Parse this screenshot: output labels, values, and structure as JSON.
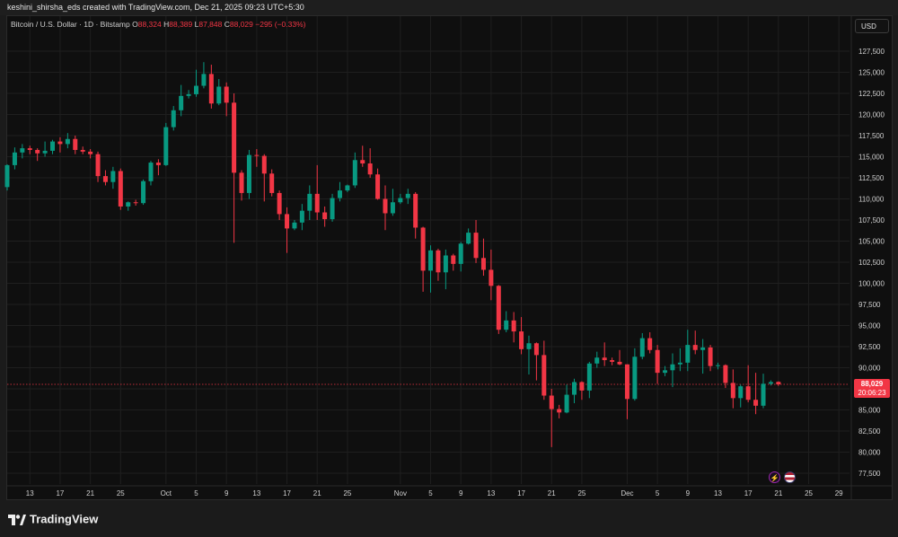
{
  "header": {
    "attribution": "keshini_shirsha_eds created with TradingView.com, Dec 21, 2025 09:23 UTC+5:30"
  },
  "legend": {
    "symbol": "Bitcoin / U.S. Dollar · 1D · Bitstamp",
    "open_label": "O",
    "open": "88,324",
    "high_label": "H",
    "high": "88,389",
    "low_label": "L",
    "low": "87,848",
    "close_label": "C",
    "close": "88,029",
    "change": "−295 (−0.33%)"
  },
  "currency_button": "USD",
  "last_price": {
    "value": "88,029",
    "countdown": "20:06:23"
  },
  "branding": {
    "logo_text": "TradingView"
  },
  "icons": [
    "lightning-icon",
    "us-flag-icon"
  ],
  "colors": {
    "up": "#089981",
    "down": "#f23645",
    "background": "#0f0f0f",
    "grid": "#1f1f1f"
  },
  "chart_data": {
    "type": "candlestick",
    "ylim": [
      76500,
      129000
    ],
    "y_ticks": [
      77500,
      80000,
      82500,
      85000,
      87500,
      90000,
      92500,
      95000,
      97500,
      100000,
      102500,
      105000,
      107500,
      110000,
      112500,
      115000,
      117500,
      120000,
      122500,
      125000,
      127500
    ],
    "y_tick_labels": [
      "77,500",
      "80,000",
      "82,500",
      "85,000",
      "87,500",
      "90,000",
      "92,500",
      "95,000",
      "97,500",
      "100,000",
      "102,500",
      "105,000",
      "107,500",
      "110,000",
      "112,500",
      "115,000",
      "117,500",
      "120,000",
      "122,500",
      "125,000",
      "127,500"
    ],
    "x_start": "2025-09-10",
    "x_end": "2025-12-30",
    "x_ticks": [
      {
        "date": "2025-09-13",
        "label": "13"
      },
      {
        "date": "2025-09-17",
        "label": "17"
      },
      {
        "date": "2025-09-21",
        "label": "21"
      },
      {
        "date": "2025-09-25",
        "label": "25"
      },
      {
        "date": "2025-10-01",
        "label": "Oct"
      },
      {
        "date": "2025-10-05",
        "label": "5"
      },
      {
        "date": "2025-10-09",
        "label": "9"
      },
      {
        "date": "2025-10-13",
        "label": "13"
      },
      {
        "date": "2025-10-17",
        "label": "17"
      },
      {
        "date": "2025-10-21",
        "label": "21"
      },
      {
        "date": "2025-10-25",
        "label": "25"
      },
      {
        "date": "2025-11-01",
        "label": "Nov"
      },
      {
        "date": "2025-11-05",
        "label": "5"
      },
      {
        "date": "2025-11-09",
        "label": "9"
      },
      {
        "date": "2025-11-13",
        "label": "13"
      },
      {
        "date": "2025-11-17",
        "label": "17"
      },
      {
        "date": "2025-11-21",
        "label": "21"
      },
      {
        "date": "2025-11-25",
        "label": "25"
      },
      {
        "date": "2025-12-01",
        "label": "Dec"
      },
      {
        "date": "2025-12-05",
        "label": "5"
      },
      {
        "date": "2025-12-09",
        "label": "9"
      },
      {
        "date": "2025-12-13",
        "label": "13"
      },
      {
        "date": "2025-12-17",
        "label": "17"
      },
      {
        "date": "2025-12-21",
        "label": "21"
      },
      {
        "date": "2025-12-25",
        "label": "25"
      },
      {
        "date": "2025-12-29",
        "label": "29"
      }
    ],
    "last_price": 88029,
    "candles": [
      {
        "d": "2025-09-10",
        "o": 111400,
        "h": 114100,
        "l": 111000,
        "c": 114000
      },
      {
        "d": "2025-09-11",
        "o": 114000,
        "h": 116100,
        "l": 113500,
        "c": 115500
      },
      {
        "d": "2025-09-12",
        "o": 115500,
        "h": 116500,
        "l": 114800,
        "c": 116000
      },
      {
        "d": "2025-09-13",
        "o": 116000,
        "h": 116300,
        "l": 115300,
        "c": 115800
      },
      {
        "d": "2025-09-14",
        "o": 115800,
        "h": 116000,
        "l": 114500,
        "c": 115400
      },
      {
        "d": "2025-09-15",
        "o": 115400,
        "h": 116800,
        "l": 115000,
        "c": 115700
      },
      {
        "d": "2025-09-16",
        "o": 115700,
        "h": 117000,
        "l": 115300,
        "c": 116800
      },
      {
        "d": "2025-09-17",
        "o": 116800,
        "h": 117300,
        "l": 115500,
        "c": 116500
      },
      {
        "d": "2025-09-18",
        "o": 116500,
        "h": 117800,
        "l": 116000,
        "c": 117100
      },
      {
        "d": "2025-09-19",
        "o": 117100,
        "h": 117500,
        "l": 115300,
        "c": 115800
      },
      {
        "d": "2025-09-20",
        "o": 115800,
        "h": 116200,
        "l": 115300,
        "c": 115600
      },
      {
        "d": "2025-09-21",
        "o": 115600,
        "h": 115900,
        "l": 114800,
        "c": 115300
      },
      {
        "d": "2025-09-22",
        "o": 115300,
        "h": 115600,
        "l": 112000,
        "c": 112700
      },
      {
        "d": "2025-09-23",
        "o": 112700,
        "h": 113400,
        "l": 111600,
        "c": 112000
      },
      {
        "d": "2025-09-24",
        "o": 112000,
        "h": 113800,
        "l": 111200,
        "c": 113300
      },
      {
        "d": "2025-09-25",
        "o": 113300,
        "h": 113600,
        "l": 108700,
        "c": 109100
      },
      {
        "d": "2025-09-26",
        "o": 109100,
        "h": 109700,
        "l": 108600,
        "c": 109600
      },
      {
        "d": "2025-09-27",
        "o": 109600,
        "h": 109900,
        "l": 109200,
        "c": 109500
      },
      {
        "d": "2025-09-28",
        "o": 109500,
        "h": 112300,
        "l": 109300,
        "c": 112100
      },
      {
        "d": "2025-09-29",
        "o": 112100,
        "h": 114500,
        "l": 111600,
        "c": 114300
      },
      {
        "d": "2025-09-30",
        "o": 114300,
        "h": 114700,
        "l": 112800,
        "c": 114000
      },
      {
        "d": "2025-10-01",
        "o": 114000,
        "h": 119000,
        "l": 113900,
        "c": 118500
      },
      {
        "d": "2025-10-02",
        "o": 118500,
        "h": 121000,
        "l": 118100,
        "c": 120500
      },
      {
        "d": "2025-10-03",
        "o": 120500,
        "h": 123500,
        "l": 119800,
        "c": 122200
      },
      {
        "d": "2025-10-04",
        "o": 122200,
        "h": 122900,
        "l": 121900,
        "c": 122400
      },
      {
        "d": "2025-10-05",
        "o": 122400,
        "h": 125300,
        "l": 122100,
        "c": 123400
      },
      {
        "d": "2025-10-06",
        "o": 123400,
        "h": 126200,
        "l": 123100,
        "c": 124800
      },
      {
        "d": "2025-10-07",
        "o": 124800,
        "h": 125900,
        "l": 120700,
        "c": 121300
      },
      {
        "d": "2025-10-08",
        "o": 121300,
        "h": 124200,
        "l": 121100,
        "c": 123300
      },
      {
        "d": "2025-10-09",
        "o": 123300,
        "h": 123800,
        "l": 119800,
        "c": 121400
      },
      {
        "d": "2025-10-10",
        "o": 121400,
        "h": 122500,
        "l": 104800,
        "c": 113100
      },
      {
        "d": "2025-10-11",
        "o": 113100,
        "h": 113400,
        "l": 109800,
        "c": 110700
      },
      {
        "d": "2025-10-12",
        "o": 110700,
        "h": 115800,
        "l": 110000,
        "c": 115200
      },
      {
        "d": "2025-10-13",
        "o": 115200,
        "h": 115900,
        "l": 113800,
        "c": 115100
      },
      {
        "d": "2025-10-14",
        "o": 115100,
        "h": 115300,
        "l": 109700,
        "c": 113000
      },
      {
        "d": "2025-10-15",
        "o": 113000,
        "h": 113500,
        "l": 110300,
        "c": 110700
      },
      {
        "d": "2025-10-16",
        "o": 110700,
        "h": 111000,
        "l": 107500,
        "c": 108200
      },
      {
        "d": "2025-10-17",
        "o": 108200,
        "h": 109000,
        "l": 103600,
        "c": 106500
      },
      {
        "d": "2025-10-18",
        "o": 106500,
        "h": 107500,
        "l": 106300,
        "c": 107200
      },
      {
        "d": "2025-10-19",
        "o": 107200,
        "h": 109400,
        "l": 106300,
        "c": 108600
      },
      {
        "d": "2025-10-20",
        "o": 108600,
        "h": 111600,
        "l": 107500,
        "c": 110600
      },
      {
        "d": "2025-10-21",
        "o": 110600,
        "h": 114000,
        "l": 107500,
        "c": 108400
      },
      {
        "d": "2025-10-22",
        "o": 108400,
        "h": 109100,
        "l": 106700,
        "c": 107600
      },
      {
        "d": "2025-10-23",
        "o": 107600,
        "h": 110600,
        "l": 107300,
        "c": 110100
      },
      {
        "d": "2025-10-24",
        "o": 110100,
        "h": 112000,
        "l": 109700,
        "c": 111000
      },
      {
        "d": "2025-10-25",
        "o": 111000,
        "h": 111700,
        "l": 110800,
        "c": 111600
      },
      {
        "d": "2025-10-26",
        "o": 111600,
        "h": 115500,
        "l": 111300,
        "c": 114600
      },
      {
        "d": "2025-10-27",
        "o": 114600,
        "h": 116300,
        "l": 113800,
        "c": 114200
      },
      {
        "d": "2025-10-28",
        "o": 114200,
        "h": 116000,
        "l": 112500,
        "c": 112900
      },
      {
        "d": "2025-10-29",
        "o": 112900,
        "h": 113600,
        "l": 109900,
        "c": 110000
      },
      {
        "d": "2025-10-30",
        "o": 110000,
        "h": 111600,
        "l": 106300,
        "c": 108300
      },
      {
        "d": "2025-10-31",
        "o": 108300,
        "h": 111200,
        "l": 108000,
        "c": 109600
      },
      {
        "d": "2025-11-01",
        "o": 109600,
        "h": 110600,
        "l": 109400,
        "c": 110100
      },
      {
        "d": "2025-11-02",
        "o": 110100,
        "h": 111200,
        "l": 109400,
        "c": 110600
      },
      {
        "d": "2025-11-03",
        "o": 110600,
        "h": 110800,
        "l": 105300,
        "c": 106600
      },
      {
        "d": "2025-11-04",
        "o": 106600,
        "h": 106700,
        "l": 99000,
        "c": 101500
      },
      {
        "d": "2025-11-05",
        "o": 101500,
        "h": 104500,
        "l": 98900,
        "c": 103900
      },
      {
        "d": "2025-11-06",
        "o": 103900,
        "h": 104100,
        "l": 100300,
        "c": 101300
      },
      {
        "d": "2025-11-07",
        "o": 101300,
        "h": 104000,
        "l": 99300,
        "c": 103300
      },
      {
        "d": "2025-11-08",
        "o": 103300,
        "h": 103500,
        "l": 101500,
        "c": 102300
      },
      {
        "d": "2025-11-09",
        "o": 102300,
        "h": 104900,
        "l": 101400,
        "c": 104700
      },
      {
        "d": "2025-11-10",
        "o": 104700,
        "h": 106500,
        "l": 104600,
        "c": 106000
      },
      {
        "d": "2025-11-11",
        "o": 106000,
        "h": 107500,
        "l": 102400,
        "c": 103000
      },
      {
        "d": "2025-11-12",
        "o": 103000,
        "h": 105300,
        "l": 100900,
        "c": 101600
      },
      {
        "d": "2025-11-13",
        "o": 101600,
        "h": 104000,
        "l": 98000,
        "c": 99700
      },
      {
        "d": "2025-11-14",
        "o": 99700,
        "h": 99800,
        "l": 94000,
        "c": 94500
      },
      {
        "d": "2025-11-15",
        "o": 94500,
        "h": 96700,
        "l": 94200,
        "c": 95600
      },
      {
        "d": "2025-11-16",
        "o": 95600,
        "h": 96600,
        "l": 93000,
        "c": 94300
      },
      {
        "d": "2025-11-17",
        "o": 94300,
        "h": 96000,
        "l": 91600,
        "c": 92200
      },
      {
        "d": "2025-11-18",
        "o": 92200,
        "h": 93800,
        "l": 89200,
        "c": 92900
      },
      {
        "d": "2025-11-19",
        "o": 92900,
        "h": 93000,
        "l": 88500,
        "c": 91500
      },
      {
        "d": "2025-11-20",
        "o": 91500,
        "h": 93200,
        "l": 86200,
        "c": 86700
      },
      {
        "d": "2025-11-21",
        "o": 86700,
        "h": 87500,
        "l": 80600,
        "c": 85100
      },
      {
        "d": "2025-11-22",
        "o": 85100,
        "h": 85600,
        "l": 84000,
        "c": 84700
      },
      {
        "d": "2025-11-23",
        "o": 84700,
        "h": 88000,
        "l": 84600,
        "c": 86800
      },
      {
        "d": "2025-11-24",
        "o": 86800,
        "h": 88700,
        "l": 85800,
        "c": 88300
      },
      {
        "d": "2025-11-25",
        "o": 88300,
        "h": 88400,
        "l": 86200,
        "c": 87300
      },
      {
        "d": "2025-11-26",
        "o": 87300,
        "h": 90700,
        "l": 86400,
        "c": 90500
      },
      {
        "d": "2025-11-27",
        "o": 90500,
        "h": 91900,
        "l": 90000,
        "c": 91200
      },
      {
        "d": "2025-11-28",
        "o": 91200,
        "h": 93000,
        "l": 90200,
        "c": 90900
      },
      {
        "d": "2025-11-29",
        "o": 90900,
        "h": 91200,
        "l": 90300,
        "c": 90700
      },
      {
        "d": "2025-11-30",
        "o": 90700,
        "h": 92100,
        "l": 90300,
        "c": 90400
      },
      {
        "d": "2025-12-01",
        "o": 90400,
        "h": 90400,
        "l": 83900,
        "c": 86300
      },
      {
        "d": "2025-12-02",
        "o": 86300,
        "h": 92300,
        "l": 86100,
        "c": 91300
      },
      {
        "d": "2025-12-03",
        "o": 91300,
        "h": 94100,
        "l": 91000,
        "c": 93500
      },
      {
        "d": "2025-12-04",
        "o": 93500,
        "h": 94200,
        "l": 91700,
        "c": 92100
      },
      {
        "d": "2025-12-05",
        "o": 92100,
        "h": 92700,
        "l": 88100,
        "c": 89400
      },
      {
        "d": "2025-12-06",
        "o": 89400,
        "h": 90200,
        "l": 89000,
        "c": 89700
      },
      {
        "d": "2025-12-07",
        "o": 89700,
        "h": 91700,
        "l": 87700,
        "c": 90400
      },
      {
        "d": "2025-12-08",
        "o": 90400,
        "h": 92300,
        "l": 89600,
        "c": 90600
      },
      {
        "d": "2025-12-09",
        "o": 90600,
        "h": 94500,
        "l": 89600,
        "c": 92700
      },
      {
        "d": "2025-12-10",
        "o": 92700,
        "h": 94400,
        "l": 91600,
        "c": 92100
      },
      {
        "d": "2025-12-11",
        "o": 92100,
        "h": 93400,
        "l": 89300,
        "c": 92400
      },
      {
        "d": "2025-12-12",
        "o": 92400,
        "h": 92700,
        "l": 89600,
        "c": 90200
      },
      {
        "d": "2025-12-13",
        "o": 90200,
        "h": 90600,
        "l": 89800,
        "c": 90300
      },
      {
        "d": "2025-12-14",
        "o": 90300,
        "h": 90400,
        "l": 87600,
        "c": 88200
      },
      {
        "d": "2025-12-15",
        "o": 88200,
        "h": 89800,
        "l": 85200,
        "c": 86400
      },
      {
        "d": "2025-12-16",
        "o": 86400,
        "h": 88000,
        "l": 85300,
        "c": 87800
      },
      {
        "d": "2025-12-17",
        "o": 87800,
        "h": 90300,
        "l": 85900,
        "c": 86200
      },
      {
        "d": "2025-12-18",
        "o": 86200,
        "h": 89400,
        "l": 84500,
        "c": 85500
      },
      {
        "d": "2025-12-19",
        "o": 85500,
        "h": 89300,
        "l": 85200,
        "c": 88100
      },
      {
        "d": "2025-12-20",
        "o": 88100,
        "h": 88500,
        "l": 87900,
        "c": 88300
      },
      {
        "d": "2025-12-21",
        "o": 88324,
        "h": 88389,
        "l": 87848,
        "c": 88029
      }
    ]
  }
}
